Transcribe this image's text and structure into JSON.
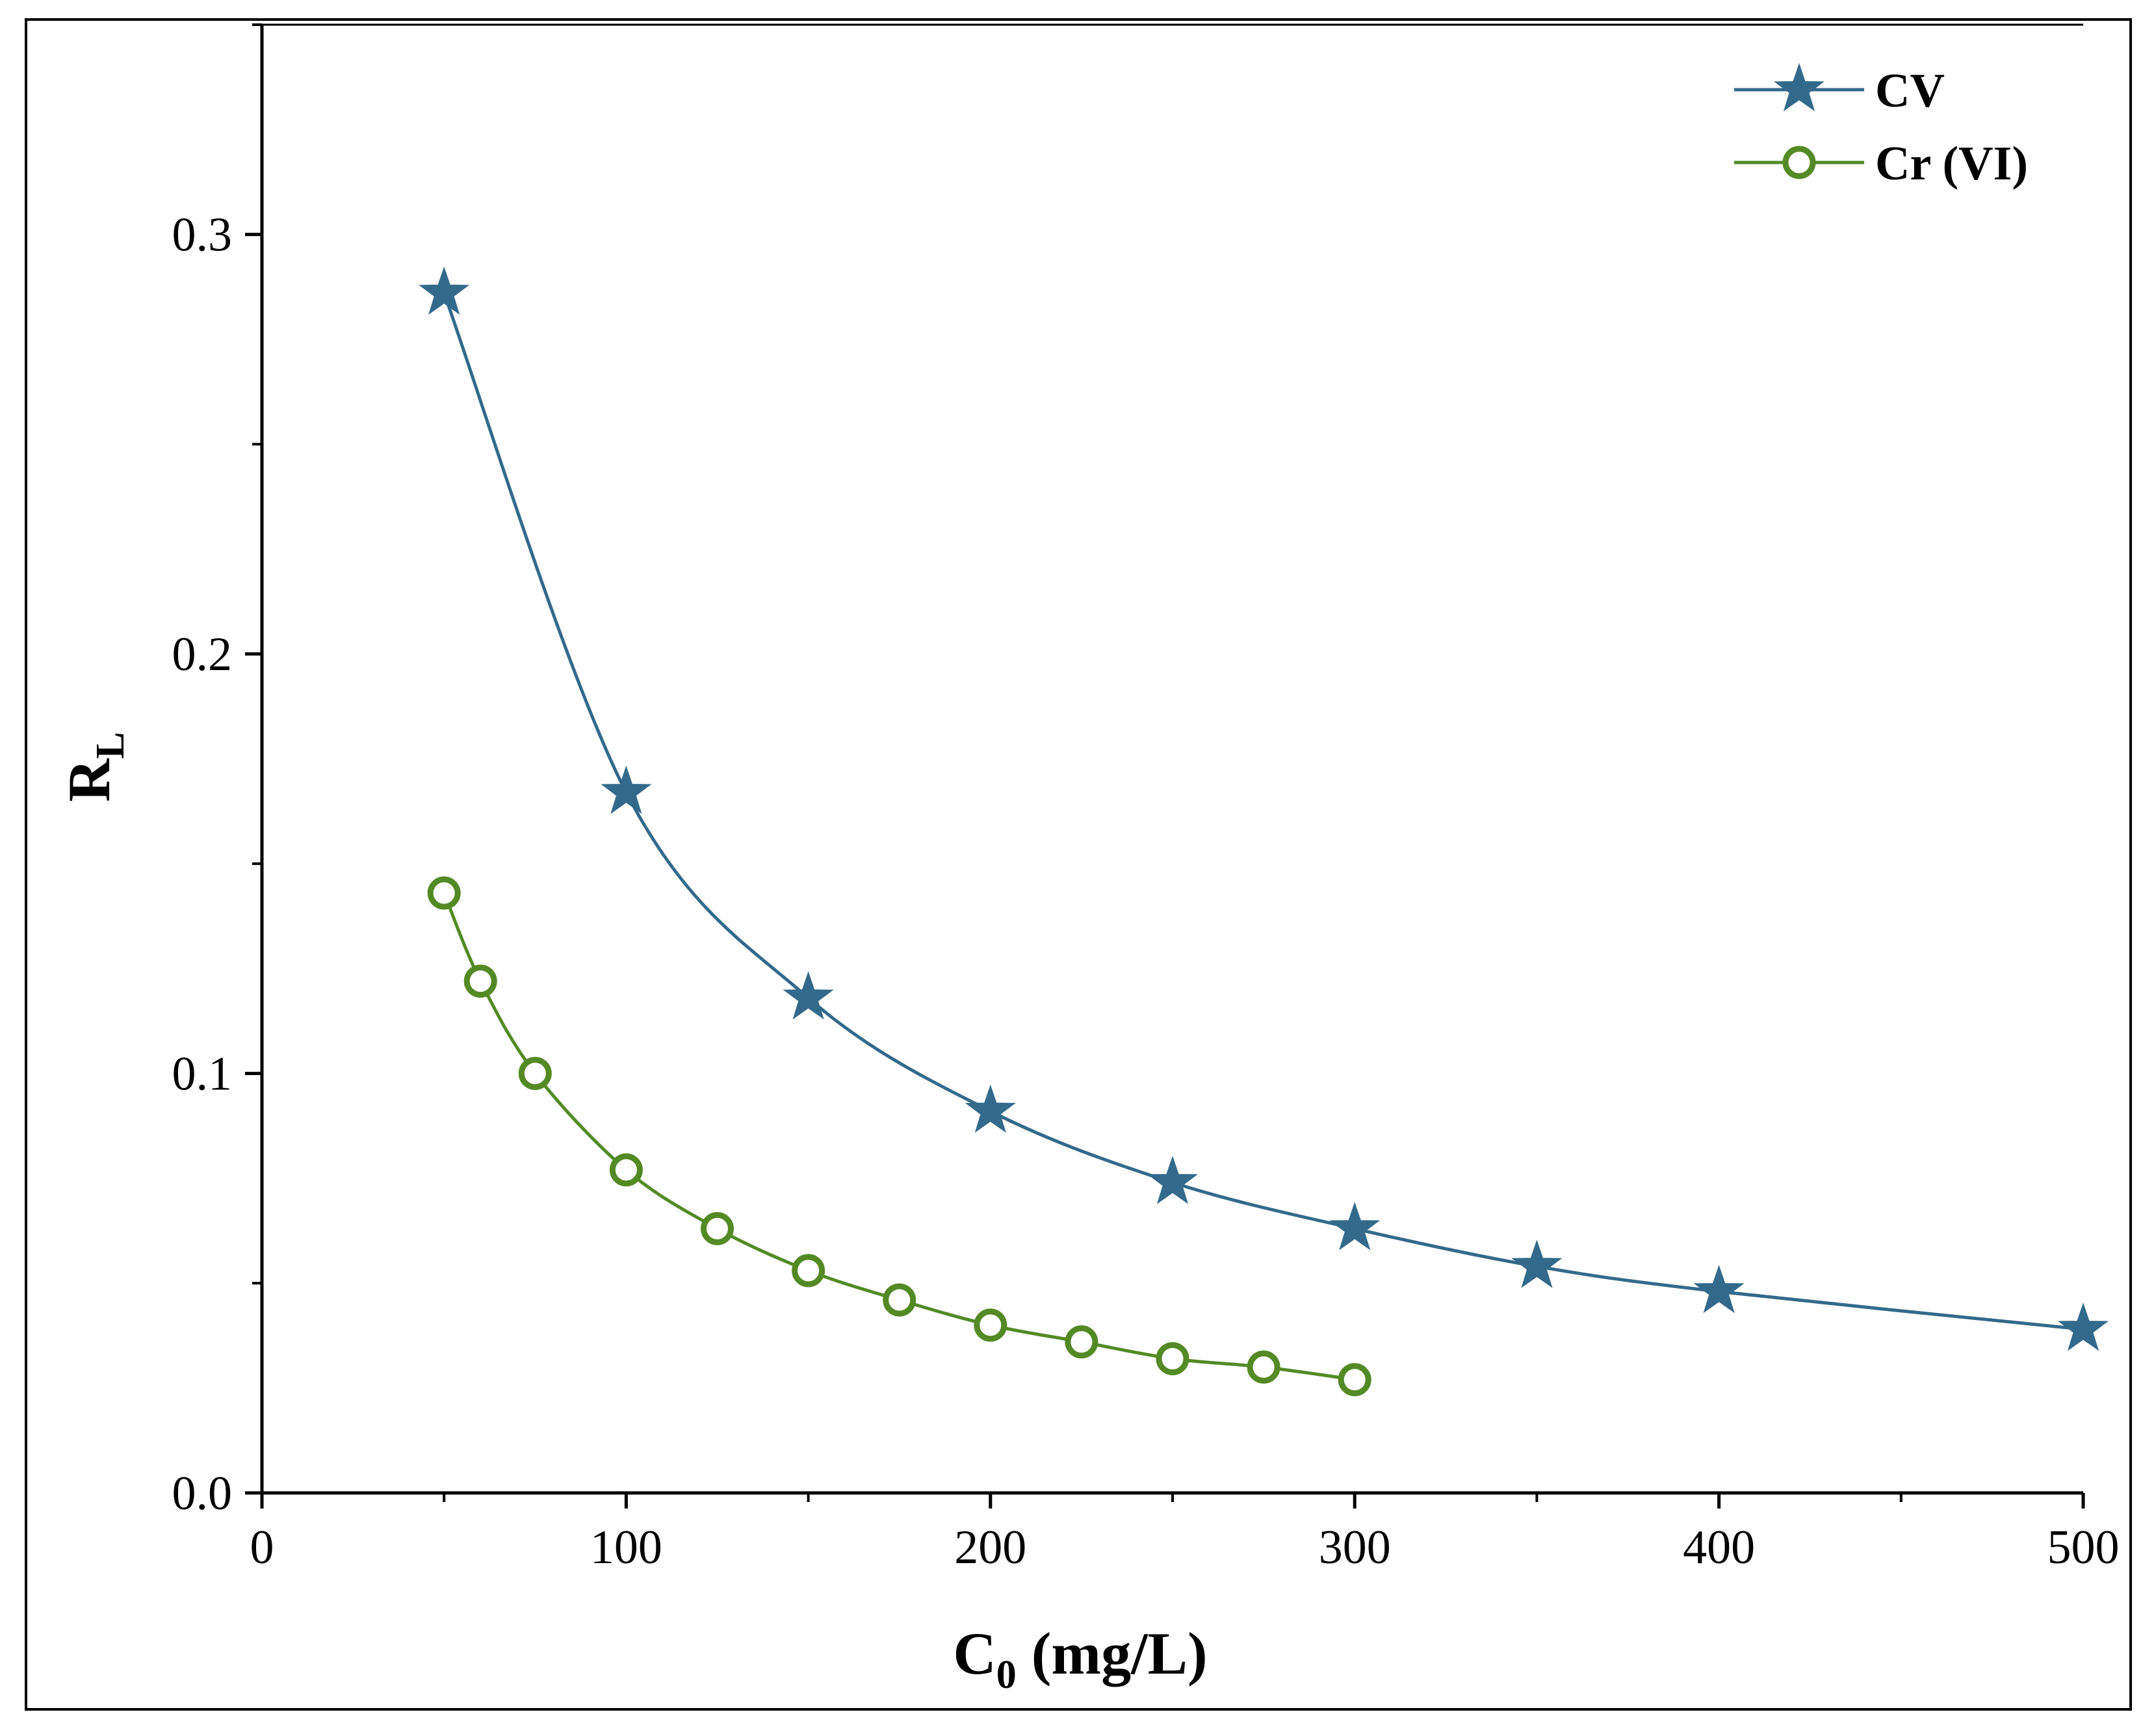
{
  "chart_data": {
    "type": "line",
    "title": "",
    "xlabel": "C",
    "xlabel_sub": "0",
    "xlabel_rest": " (mg/L)",
    "ylabel": "R",
    "ylabel_sub": "L",
    "xlim": [
      0,
      500
    ],
    "ylim": [
      0.0,
      0.35
    ],
    "xticks": [
      0,
      100,
      200,
      300,
      400,
      500
    ],
    "xtick_labels": [
      "0",
      "100",
      "200",
      "300",
      "400",
      "500"
    ],
    "x_minor_step": 50,
    "yticks": [
      0.0,
      0.1,
      0.2,
      0.3
    ],
    "ytick_labels": [
      "0.0",
      "0.1",
      "0.2",
      "0.3"
    ],
    "y_minor_step": 0.05,
    "grid": false,
    "legend_position": "top-right",
    "series": [
      {
        "name": "CV",
        "marker": "star",
        "color": "#336a8c",
        "x": [
          50,
          100,
          150,
          200,
          250,
          300,
          350,
          400,
          500
        ],
        "y": [
          0.286,
          0.167,
          0.118,
          0.091,
          0.074,
          0.063,
          0.054,
          0.048,
          0.039
        ]
      },
      {
        "name": "Cr (VI)",
        "marker": "open-circle",
        "color": "#538a25",
        "x": [
          50,
          60,
          75,
          100,
          125,
          150,
          175,
          200,
          225,
          250,
          275,
          300
        ],
        "y": [
          0.143,
          0.122,
          0.1,
          0.077,
          0.063,
          0.053,
          0.046,
          0.04,
          0.036,
          0.032,
          0.03,
          0.027
        ]
      }
    ]
  }
}
